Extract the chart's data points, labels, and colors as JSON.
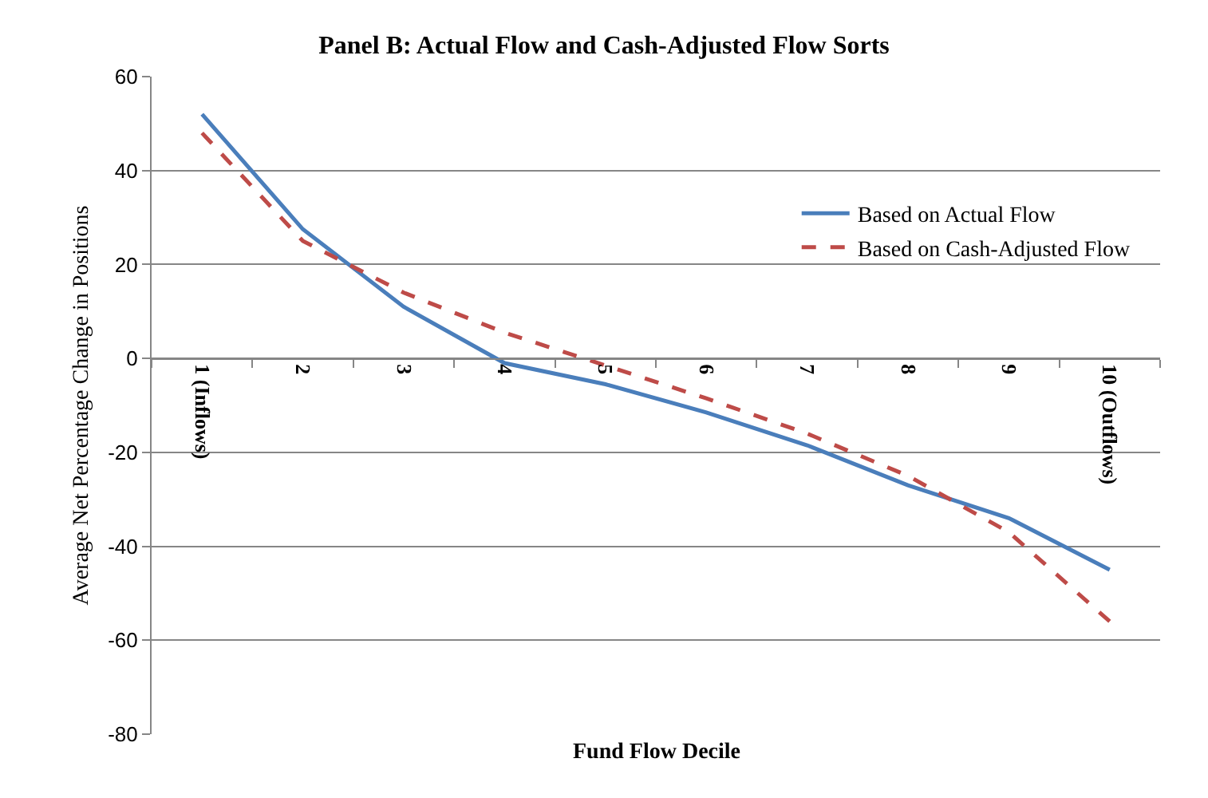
{
  "chart_data": {
    "type": "line",
    "title": "Panel B: Actual Flow and Cash-Adjusted Flow Sorts",
    "xlabel": "Fund Flow Decile",
    "ylabel": "Average Net Percentage Change in Positions",
    "categories": [
      "1 (Inflows)",
      "2",
      "3",
      "4",
      "5",
      "6",
      "7",
      "8",
      "9",
      "10 (Outflows)"
    ],
    "series": [
      {
        "name": "Based on Actual Flow",
        "color": "#4a7ebb",
        "line_style": "solid",
        "values": [
          52,
          27.5,
          11,
          -1,
          -5.5,
          -11.5,
          -18.5,
          -27,
          -34,
          -45
        ]
      },
      {
        "name": "Based on Cash-Adjusted Flow",
        "color": "#be4b48",
        "line_style": "dashed",
        "values": [
          48,
          25,
          14,
          5.5,
          -1.5,
          -8.5,
          -16,
          -25,
          -37,
          -56
        ]
      }
    ],
    "ylim": [
      -80,
      60
    ],
    "yticks": [
      -80,
      -60,
      -40,
      -20,
      0,
      20,
      40,
      60
    ],
    "grid": "y",
    "legend": "top right",
    "marker": "none"
  }
}
